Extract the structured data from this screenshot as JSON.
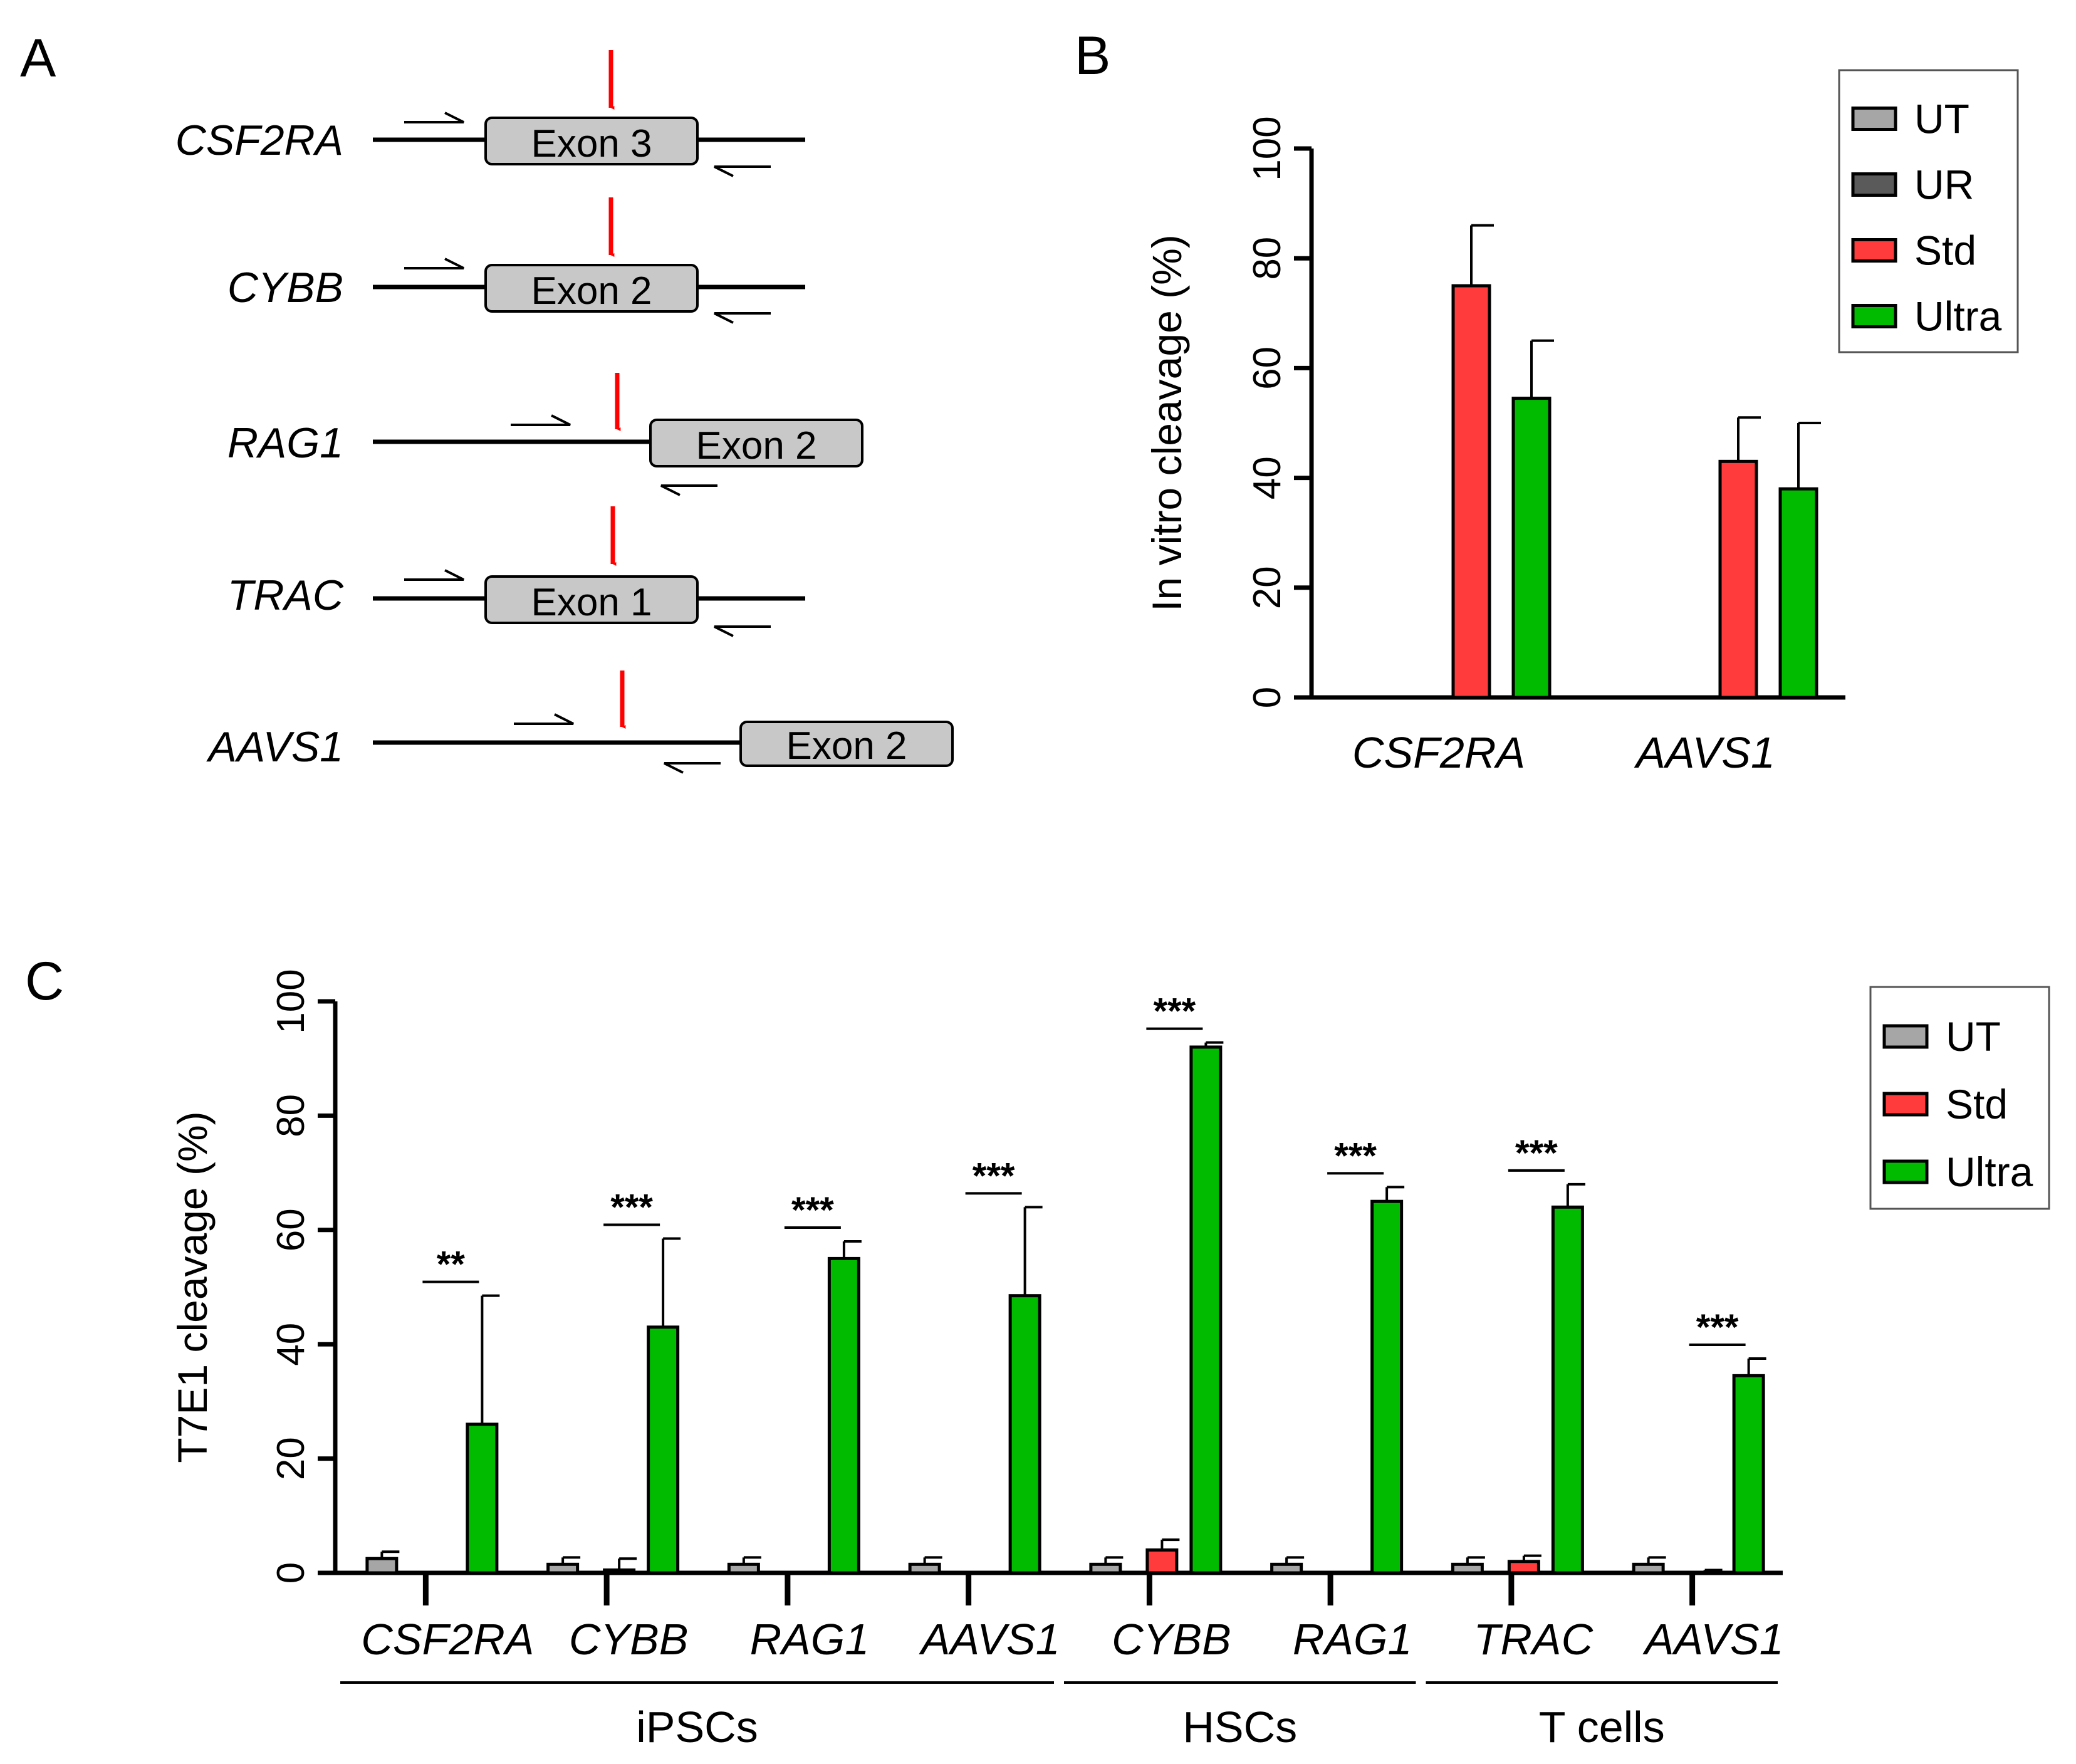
{
  "panels": {
    "a": "A",
    "b": "B",
    "c": "C"
  },
  "panel_a": {
    "genes": [
      {
        "name": "CSF2RA",
        "exon": "Exon 3"
      },
      {
        "name": "CYBB",
        "exon": "Exon 2"
      },
      {
        "name": "RAG1",
        "exon": "Exon 2"
      },
      {
        "name": "TRAC",
        "exon": "Exon 1"
      },
      {
        "name": "AAVS1",
        "exon": "Exon 2"
      }
    ],
    "colors": {
      "exon_fill": "#c8c8c8",
      "cut_arrow": "#ff0000"
    }
  },
  "chart_data": [
    {
      "id": "B",
      "type": "bar",
      "title": "",
      "xlabel": "",
      "ylabel": "In vitro cleavage (%)",
      "ylim": [
        0,
        100
      ],
      "yticks": [
        "0",
        "20",
        "40",
        "60",
        "80",
        "100"
      ],
      "categories": [
        "CSF2RA",
        "AAVS1"
      ],
      "series": [
        {
          "name": "UT",
          "color": "#a6a6a6",
          "values": [
            0,
            0
          ],
          "errors": [
            0,
            0
          ]
        },
        {
          "name": "UR",
          "color": "#5a5a5a",
          "values": [
            0,
            0
          ],
          "errors": [
            0,
            0
          ]
        },
        {
          "name": "Std",
          "color": "#ff3b3b",
          "values": [
            75,
            43
          ],
          "errors": [
            11,
            8
          ]
        },
        {
          "name": "Ultra",
          "color": "#00bb00",
          "values": [
            54.5,
            38
          ],
          "errors": [
            10.5,
            12
          ]
        }
      ],
      "legend": "top-right"
    },
    {
      "id": "C",
      "type": "bar",
      "title": "",
      "xlabel": "",
      "ylabel": "T7E1 cleavage (%)",
      "ylim": [
        0,
        100
      ],
      "yticks": [
        "0",
        "20",
        "40",
        "60",
        "80",
        "100"
      ],
      "categories": [
        "CSF2RA",
        "CYBB",
        "RAG1",
        "AAVS1",
        "CYBB",
        "RAG1",
        "TRAC",
        "AAVS1"
      ],
      "groups": [
        {
          "label": "iPSCs",
          "categories": [
            0,
            1,
            2,
            3
          ]
        },
        {
          "label": "HSCs",
          "categories": [
            4,
            5
          ]
        },
        {
          "label": "T cells",
          "categories": [
            6,
            7
          ]
        }
      ],
      "series": [
        {
          "name": "UT",
          "color": "#a6a6a6",
          "values": [
            2.5,
            1.5,
            1.5,
            1.5,
            1.5,
            1.5,
            1.5,
            1.5
          ],
          "errors": [
            1.2,
            1.2,
            1.2,
            1.2,
            1.2,
            1.2,
            1.2,
            1.2
          ]
        },
        {
          "name": "Std",
          "color": "#ff3b3b",
          "values": [
            0,
            0.5,
            0,
            0,
            4,
            0,
            2,
            0
          ],
          "errors": [
            0,
            2,
            0,
            0,
            1.8,
            0,
            1,
            0.5
          ]
        },
        {
          "name": "Ultra",
          "color": "#00bb00",
          "values": [
            26,
            43,
            55,
            48.5,
            92,
            65,
            64,
            34.5
          ],
          "errors": [
            22.5,
            15.5,
            3,
            15.5,
            0.8,
            2.5,
            4,
            3
          ]
        }
      ],
      "significance": [
        "**",
        "***",
        "***",
        "***",
        "***",
        "***",
        "***",
        "***"
      ],
      "legend": "top-right"
    }
  ]
}
